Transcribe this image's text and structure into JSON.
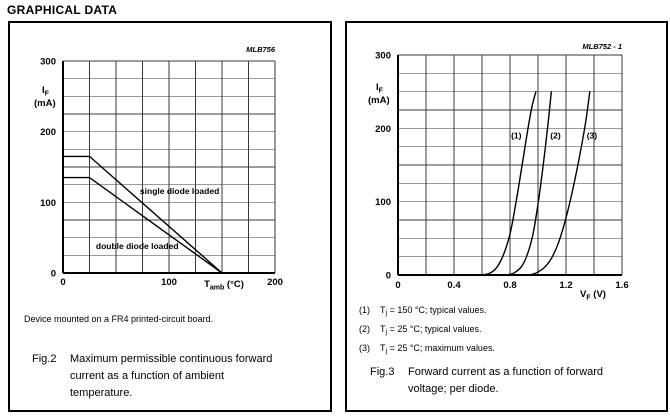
{
  "heading": "GRAPHICAL DATA",
  "fig2": {
    "chart_id": "MLB756",
    "note": "Device mounted on a FR4 printed-circuit board.",
    "caption_label": "Fig.2",
    "caption": "Maximum permissible continuous forward current as a function of ambient temperature."
  },
  "fig3": {
    "chart_id": "MLB752 - 1",
    "footnotes": [
      {
        "num": "(1)",
        "pre": "T",
        "sub": "j",
        "rest": " = 150 °C; typical values."
      },
      {
        "num": "(2)",
        "pre": "T",
        "sub": "j",
        "rest": " = 25 °C; typical values."
      },
      {
        "num": "(3)",
        "pre": "T",
        "sub": "j",
        "rest": " = 25 °C; maximum values."
      }
    ],
    "caption_label": "Fig.3",
    "caption": "Forward current as a function of forward voltage; per diode."
  },
  "chart_data": [
    {
      "id": "fig2",
      "type": "line",
      "title": "Maximum permissible continuous forward current as a function of ambient temperature",
      "plot_label": "MLB756",
      "xlabel": {
        "pre": "T",
        "sub": "amb",
        "rest": " (°C)"
      },
      "ylabel": {
        "pre": "I",
        "sub": "F",
        "unit": "(mA)"
      },
      "xlim": [
        0,
        200
      ],
      "ylim": [
        0,
        300
      ],
      "x_ticks": [
        0,
        100,
        200
      ],
      "y_ticks": [
        0,
        100,
        200,
        300
      ],
      "x_grid_step": 25,
      "y_grid_step": 25,
      "grid": "on",
      "legend": "labels-on-plot",
      "series": [
        {
          "name": "single diode loaded",
          "smooth": false,
          "label_at": [
            110,
            116
          ],
          "points": [
            [
              0,
              165
            ],
            [
              25,
              165
            ],
            [
              150,
              0
            ]
          ]
        },
        {
          "name": "double diode loaded",
          "smooth": false,
          "label_at": [
            70,
            38
          ],
          "points": [
            [
              0,
              135
            ],
            [
              25,
              135
            ],
            [
              150,
              0
            ]
          ]
        }
      ]
    },
    {
      "id": "fig3",
      "type": "line",
      "title": "Forward current as a function of forward voltage; per diode",
      "plot_label": "MLB752 - 1",
      "xlabel": {
        "pre": "V",
        "sub": "F",
        "rest": " (V)"
      },
      "ylabel": {
        "pre": "I",
        "sub": "F",
        "unit": "(mA)"
      },
      "xlim": [
        0,
        1.6
      ],
      "ylim": [
        0,
        300
      ],
      "x_ticks": [
        0,
        0.4,
        0.8,
        1.2,
        1.6
      ],
      "y_ticks": [
        0,
        100,
        200,
        300
      ],
      "x_grid_step": 0.2,
      "y_grid_step": 25,
      "grid": "on",
      "legend": "numbered-curves",
      "series": [
        {
          "name": "(1) Tj = 150 °C; typical values",
          "label": "(1)",
          "smooth": true,
          "label_at": [
            0.845,
            190
          ],
          "points": [
            [
              0.6,
              0
            ],
            [
              0.65,
              2
            ],
            [
              0.7,
              9
            ],
            [
              0.75,
              26
            ],
            [
              0.8,
              56
            ],
            [
              0.84,
              96
            ],
            [
              0.88,
              142
            ],
            [
              0.92,
              190
            ],
            [
              0.955,
              228
            ],
            [
              0.985,
              250
            ]
          ]
        },
        {
          "name": "(2) Tj = 25 °C; typical values",
          "label": "(2)",
          "smooth": true,
          "label_at": [
            1.125,
            190
          ],
          "points": [
            [
              0.78,
              0
            ],
            [
              0.83,
              3
            ],
            [
              0.88,
              11
            ],
            [
              0.92,
              26
            ],
            [
              0.96,
              52
            ],
            [
              0.99,
              84
            ],
            [
              1.02,
              124
            ],
            [
              1.05,
              170
            ],
            [
              1.075,
              212
            ],
            [
              1.095,
              250
            ]
          ]
        },
        {
          "name": "(3) Tj = 25 °C; maximum values",
          "label": "(3)",
          "smooth": true,
          "label_at": [
            1.385,
            190
          ],
          "points": [
            [
              0.94,
              0
            ],
            [
              1.0,
              4
            ],
            [
              1.05,
              11
            ],
            [
              1.1,
              24
            ],
            [
              1.15,
              46
            ],
            [
              1.2,
              78
            ],
            [
              1.25,
              118
            ],
            [
              1.3,
              165
            ],
            [
              1.34,
              208
            ],
            [
              1.37,
              250
            ]
          ]
        }
      ]
    }
  ]
}
